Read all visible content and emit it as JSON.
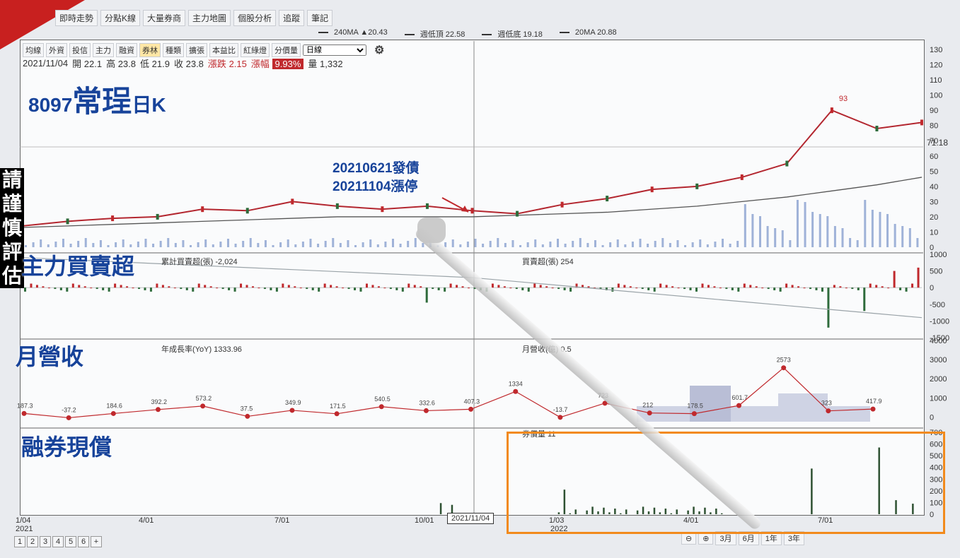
{
  "top_tabs": [
    "即時走勢",
    "分點K線",
    "大量券商",
    "主力地圖",
    "個股分析",
    "追蹤",
    "筆記"
  ],
  "ma_legend": [
    {
      "label": "240MA",
      "value": "▲20.43"
    },
    {
      "label": "週低頂",
      "value": "22.58"
    },
    {
      "label": "週低底",
      "value": "19.18"
    },
    {
      "label": "20MA",
      "value": "20.88"
    }
  ],
  "toolbar": {
    "buttons": [
      "均線",
      "外資",
      "投信",
      "主力",
      "融資",
      "券林",
      "種類",
      "擴張",
      "本益比",
      "紅綠燈",
      "分價量"
    ],
    "active_index": 5,
    "period_select": "日線"
  },
  "quote": {
    "date": "2021/11/04",
    "open_label": "開",
    "open": "22.1",
    "high_label": "高",
    "high": "23.8",
    "low_label": "低",
    "low": "21.9",
    "close_label": "收",
    "close": "23.8",
    "change_label": "漲跌",
    "change": "2.15",
    "pct_label": "漲幅",
    "pct": "9.93%",
    "vol_label": "量",
    "vol": "1,332"
  },
  "title": {
    "code": "8097",
    "name": "常珵",
    "suffix": "日K"
  },
  "side_warning": "請謹慎評估",
  "annotation": {
    "line1": "20210621發債",
    "line2": "20211104漲停"
  },
  "sections": {
    "main_force": "主力買賣超",
    "monthly_rev": "月營收",
    "short_cover": "融券現償"
  },
  "main_force_legend": {
    "left": "累計買賣超(張) -2,024",
    "right": "買賣超(張) 254"
  },
  "rev_legend": {
    "left": "年成長率(YoY) 1333.96",
    "right": "月營收(億) 0.5"
  },
  "short_legend": "券償量 11",
  "ma_right_value": "71.18",
  "peak_label": "93",
  "selected_date": "2021/11/04",
  "pager": [
    "1",
    "2",
    "3",
    "4",
    "5",
    "6",
    "+"
  ],
  "range_buttons": [
    "3月",
    "6月",
    "1年",
    "3年"
  ],
  "chart_data": [
    {
      "type": "line",
      "name": "price",
      "x": [
        "2021/01/04",
        "2021/02/01",
        "2021/03/01",
        "2021/04/01",
        "2021/05/01",
        "2021/06/01",
        "2021/07/01",
        "2021/08/01",
        "2021/09/01",
        "2021/10/01",
        "2021/11/04",
        "2021/12/01",
        "2022/01/03",
        "2022/02/01",
        "2022/03/01",
        "2022/04/01",
        "2022/05/01",
        "2022/06/01",
        "2022/07/01",
        "2022/08/01",
        "2022/09/01"
      ],
      "series": [
        {
          "name": "close",
          "values": [
            14,
            17,
            19,
            20,
            25,
            24,
            30,
            27,
            25,
            27,
            24,
            22,
            28,
            32,
            38,
            40,
            46,
            55,
            90,
            78,
            82
          ]
        },
        {
          "name": "240MA",
          "values": [
            13,
            14,
            15,
            16,
            17,
            18,
            19,
            20,
            20,
            20,
            20,
            21,
            22,
            23,
            25,
            27,
            30,
            33,
            37,
            41,
            46
          ]
        }
      ],
      "ylim": [
        0,
        130
      ],
      "yticks": [
        0,
        10,
        20,
        30,
        40,
        50,
        60,
        70,
        80,
        90,
        100,
        110,
        120,
        130
      ]
    },
    {
      "type": "bar",
      "name": "main_force",
      "ylim": [
        -1500,
        1000
      ],
      "yticks": [
        1000,
        500,
        0,
        -500,
        -1000,
        -1500
      ]
    },
    {
      "type": "line",
      "name": "monthly_yoy",
      "labels": [
        "187.3",
        "-37.2",
        "184.6",
        "392.2",
        "573.2",
        "37.5",
        "349.9",
        "171.5",
        "540.5",
        "332.6",
        "407.3",
        "1334",
        "-13.7",
        "723",
        "212",
        "178.5",
        "601.7",
        "2573",
        "323",
        "417.9"
      ],
      "values": [
        187.3,
        -37.2,
        184.6,
        392.2,
        573.2,
        37.5,
        349.9,
        171.5,
        540.5,
        332.6,
        407.3,
        1334,
        -13.7,
        723,
        212,
        178.5,
        601.7,
        2573,
        323,
        417.9
      ],
      "ylim": [
        -500,
        4000
      ],
      "yticks": [
        4000,
        3000,
        2000,
        1000,
        0
      ]
    },
    {
      "type": "bar",
      "name": "short_cover",
      "ylim": [
        0,
        700
      ],
      "yticks": [
        700,
        600,
        500,
        400,
        300,
        200,
        100,
        0
      ]
    }
  ],
  "x_axis_labels": [
    {
      "label": "1/04",
      "sub": "2021"
    },
    {
      "label": "4/01",
      "sub": ""
    },
    {
      "label": "7/01",
      "sub": ""
    },
    {
      "label": "10/01",
      "sub": ""
    },
    {
      "label": "1/03",
      "sub": "2022"
    },
    {
      "label": "4/01",
      "sub": ""
    },
    {
      "label": "7/01",
      "sub": ""
    }
  ]
}
